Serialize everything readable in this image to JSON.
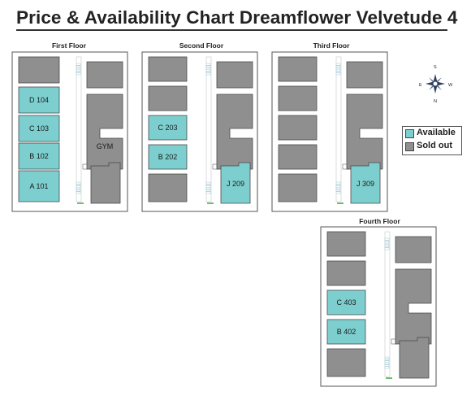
{
  "title": "Price & Availability Chart Dreamflower Velvetude 4",
  "colors": {
    "available": "#7dcfcf",
    "sold_out": "#8f8f8f",
    "outline": "#4a4a4a"
  },
  "legend": {
    "available": "Available",
    "sold_out": "Sold out"
  },
  "compass": {
    "n": "N",
    "s": "S",
    "e": "E",
    "w": "W"
  },
  "floors": [
    {
      "label": "First Floor",
      "units": [
        {
          "label": "D 104",
          "status": "available"
        },
        {
          "label": "C 103",
          "status": "available"
        },
        {
          "label": "B 102",
          "status": "available"
        },
        {
          "label": "A 101",
          "status": "available"
        },
        {
          "label": "GYM",
          "status": "sold_out"
        }
      ]
    },
    {
      "label": "Second Floor",
      "units": [
        {
          "label": "C 203",
          "status": "available"
        },
        {
          "label": "B 202",
          "status": "available"
        },
        {
          "label": "J 209",
          "status": "available"
        }
      ]
    },
    {
      "label": "Third Floor",
      "units": [
        {
          "label": "J 309",
          "status": "available"
        }
      ]
    },
    {
      "label": "Fourth Floor",
      "units": [
        {
          "label": "C 403",
          "status": "available"
        },
        {
          "label": "B 402",
          "status": "available"
        }
      ]
    }
  ]
}
